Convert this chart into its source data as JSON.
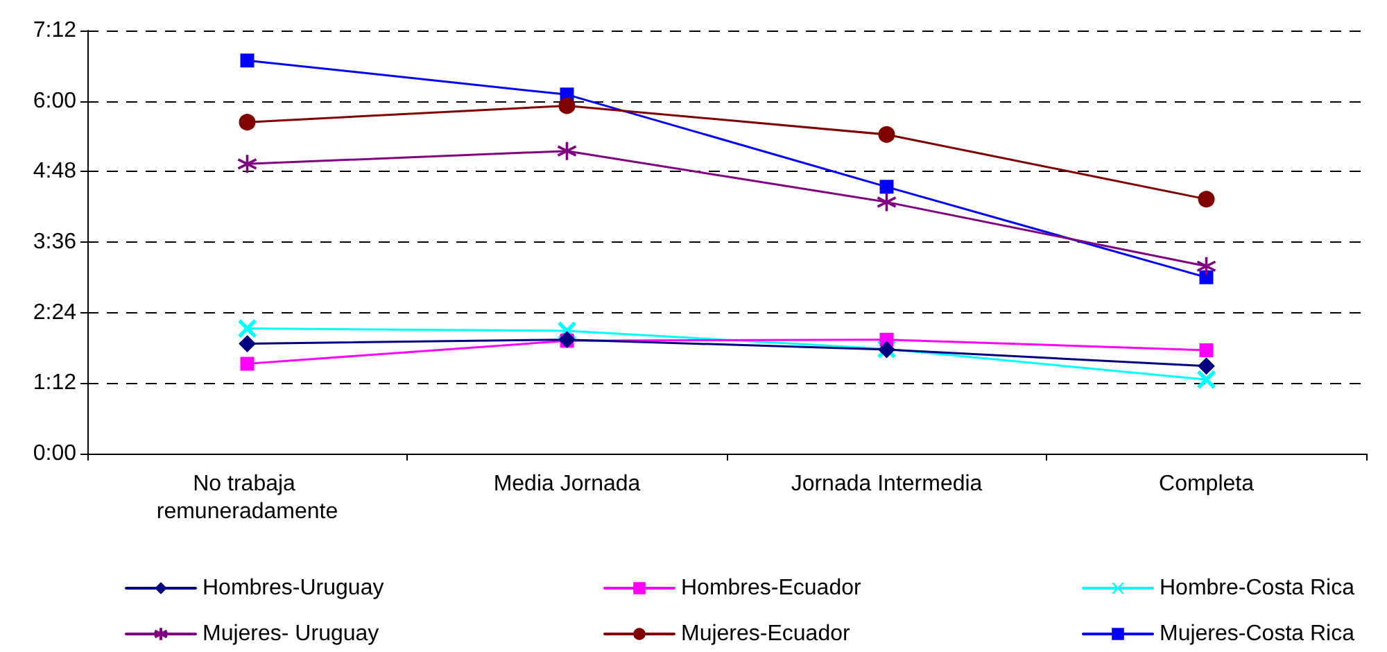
{
  "chart_data": {
    "type": "line",
    "categories": [
      "No trabaja remuneradamente",
      "Media Jornada",
      "Jornada Intermedia",
      "Completa"
    ],
    "series": [
      {
        "name": "Hombres-Uruguay",
        "color": "#000080",
        "marker": "diamond",
        "values": [
          1.87,
          1.94,
          1.77,
          1.49
        ]
      },
      {
        "name": "Hombres-Ecuador",
        "color": "#ff00ff",
        "marker": "square",
        "values": [
          1.53,
          1.92,
          1.94,
          1.76
        ]
      },
      {
        "name": "Hombre-Costa Rica",
        "color": "#00ffff",
        "marker": "cross",
        "values": [
          2.13,
          2.09,
          1.78,
          1.26
        ]
      },
      {
        "name": "Mujeres- Uruguay",
        "color": "#800080",
        "marker": "star",
        "values": [
          4.93,
          5.15,
          4.28,
          3.19
        ]
      },
      {
        "name": "Mujeres-Ecuador",
        "color": "#800000",
        "marker": "circle",
        "values": [
          5.64,
          5.92,
          5.43,
          4.33
        ]
      },
      {
        "name": "Mujeres-Costa Rica",
        "color": "#0000ff",
        "marker": "square",
        "values": [
          6.69,
          6.11,
          4.54,
          3.0
        ]
      }
    ],
    "ylim": [
      0,
      7.2
    ],
    "yticks": [
      {
        "value": 0,
        "label": "0:00"
      },
      {
        "value": 1.2,
        "label": "1:12"
      },
      {
        "value": 2.4,
        "label": "2:24"
      },
      {
        "value": 3.6,
        "label": "3:36"
      },
      {
        "value": 4.8,
        "label": "4:48"
      },
      {
        "value": 6,
        "label": "6:00"
      },
      {
        "value": 7.2,
        "label": "7:12"
      }
    ],
    "grid": "y",
    "legend": "bottom",
    "line_style": "solid"
  }
}
